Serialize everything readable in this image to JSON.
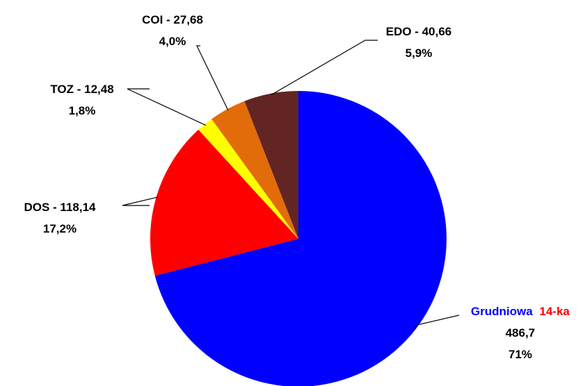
{
  "chart_data": {
    "type": "pie",
    "start_angle_deg": 0,
    "direction": "clockwise",
    "legend": "none",
    "slices": [
      {
        "key": "grudniowa",
        "name_parts": [
          {
            "text": "Grudniowa",
            "color": "#0000ff"
          },
          {
            "text": "14-ka",
            "color": "#ff0000"
          }
        ],
        "value": 486.7,
        "value_label": "486,7",
        "percent_label": "71%",
        "color": "#0000ff"
      },
      {
        "key": "dos",
        "label": "DOS - 118,14",
        "value": 118.14,
        "percent_label": "17,2%",
        "color": "#ff0000"
      },
      {
        "key": "toz",
        "label": "TOZ - 12,48",
        "value": 12.48,
        "percent_label": "1,8%",
        "color": "#ffff00"
      },
      {
        "key": "coi",
        "label": "COI - 27,68",
        "value": 27.68,
        "percent_label": "4,0%",
        "color": "#e36c0a"
      },
      {
        "key": "edo",
        "label": "EDO - 40,66",
        "value": 40.66,
        "percent_label": "5,9%",
        "color": "#632523"
      }
    ]
  }
}
